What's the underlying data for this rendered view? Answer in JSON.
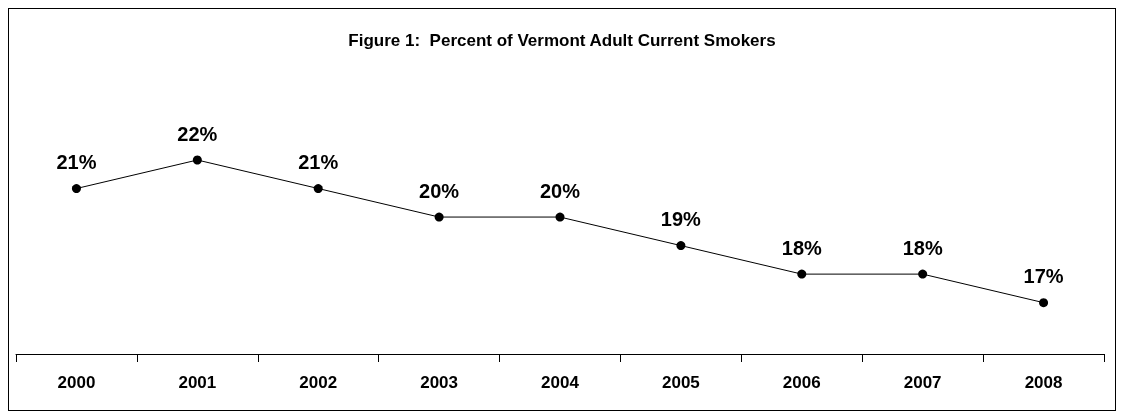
{
  "chart_data": {
    "type": "line",
    "title": "Figure 1:  Percent of Vermont Adult Current Smokers",
    "categories": [
      "2000",
      "2001",
      "2002",
      "2003",
      "2004",
      "2005",
      "2006",
      "2007",
      "2008"
    ],
    "values": [
      21,
      22,
      21,
      20,
      20,
      19,
      18,
      18,
      17
    ],
    "value_labels": [
      "21%",
      "22%",
      "21%",
      "20%",
      "20%",
      "19%",
      "18%",
      "18%",
      "17%"
    ],
    "color": "#000000",
    "marker": "circle",
    "line_style": "solid"
  }
}
